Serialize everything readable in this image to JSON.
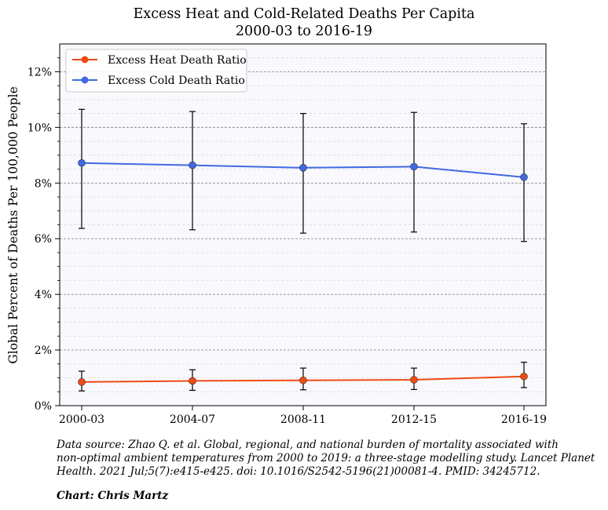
{
  "chart_data": {
    "type": "line",
    "title_line1": "Excess Heat and Cold-Related Deaths Per Capita",
    "title_line2": "2000-03 to 2016-19",
    "xlabel": "",
    "ylabel": "Global Percent of Deaths Per 100,000 People",
    "categories": [
      "2000-03",
      "2004-07",
      "2008-11",
      "2012-15",
      "2016-19"
    ],
    "ylim": [
      0,
      13
    ],
    "yticks": [
      0,
      2,
      4,
      6,
      8,
      10,
      12
    ],
    "ytick_labels": [
      "0%",
      "2%",
      "4%",
      "6%",
      "8%",
      "10%",
      "12%"
    ],
    "grid": "horizontal dashed",
    "legend_position": "top-left",
    "series": [
      {
        "name": "Excess Heat Death Ratio",
        "color": "#f04a14",
        "values": [
          0.85,
          0.89,
          0.91,
          0.93,
          1.05
        ],
        "err_low": [
          0.53,
          0.55,
          0.57,
          0.58,
          0.65
        ],
        "err_high": [
          1.24,
          1.29,
          1.35,
          1.35,
          1.56
        ]
      },
      {
        "name": "Excess Cold Death Ratio",
        "color": "#4169e1",
        "values": [
          8.72,
          8.64,
          8.55,
          8.59,
          8.21
        ],
        "err_low": [
          6.37,
          6.32,
          6.2,
          6.24,
          5.9
        ],
        "err_high": [
          10.65,
          10.57,
          10.5,
          10.54,
          10.13
        ]
      }
    ]
  },
  "footer": {
    "source_line1": "Data source: Zhao Q. et al. Global, regional, and national burden of mortality associated with",
    "source_line2": "non-optimal ambient temperatures from 2000 to 2019: a three-stage modelling study. Lancet Planet",
    "source_line3": "Health. 2021 Jul;5(7):e415-e425. doi: 10.1016/S2542-5196(21)00081-4. PMID: 34245712.",
    "credit": "Chart: Chris Martz"
  }
}
